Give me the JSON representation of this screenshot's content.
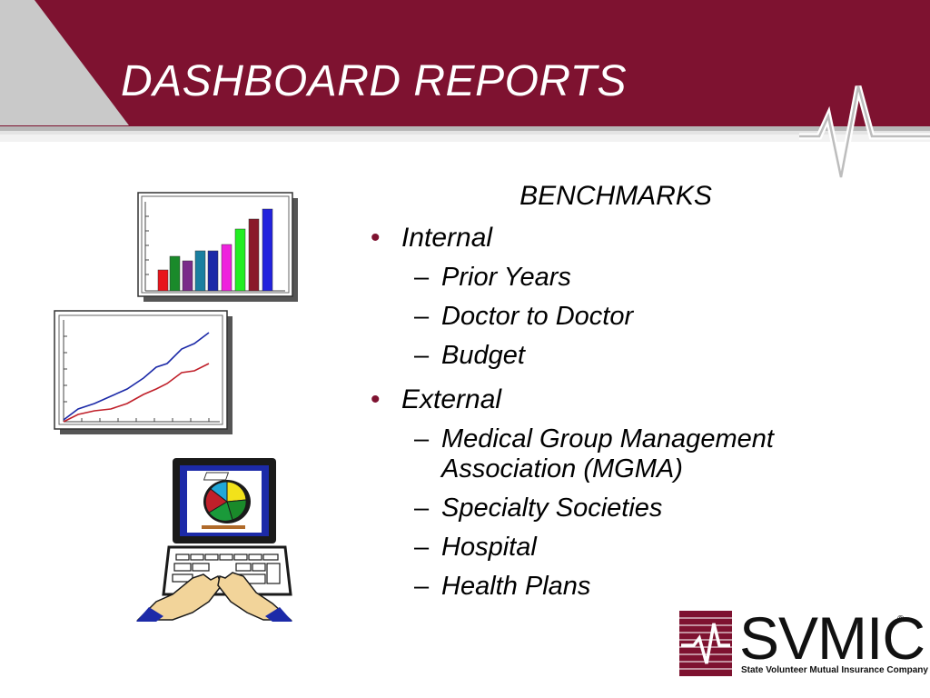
{
  "slide": {
    "title": "DASHBOARD REPORTS",
    "heading": "BENCHMARKS",
    "items": [
      {
        "label": "Internal",
        "subitems": [
          "Prior Years",
          "Doctor to Doctor",
          "Budget"
        ]
      },
      {
        "label": "External",
        "subitems": [
          "Medical Group Management Association (MGMA)",
          "Specialty Societies",
          "Hospital",
          "Health Plans"
        ]
      }
    ]
  },
  "glyphs": {
    "bullet": "•",
    "dash": "–",
    "registered": "®"
  },
  "icons": [
    "bar-chart-clipart",
    "line-chart-clipart",
    "computer-pie-chart-clipart",
    "ecg-line-icon"
  ],
  "logo": {
    "name": "SVMIC",
    "tagline": "State Volunteer Mutual Insurance Company"
  },
  "colors": {
    "brand_maroon": "#7e1230",
    "header_gray": "#c9c9c9",
    "text": "#000000"
  }
}
